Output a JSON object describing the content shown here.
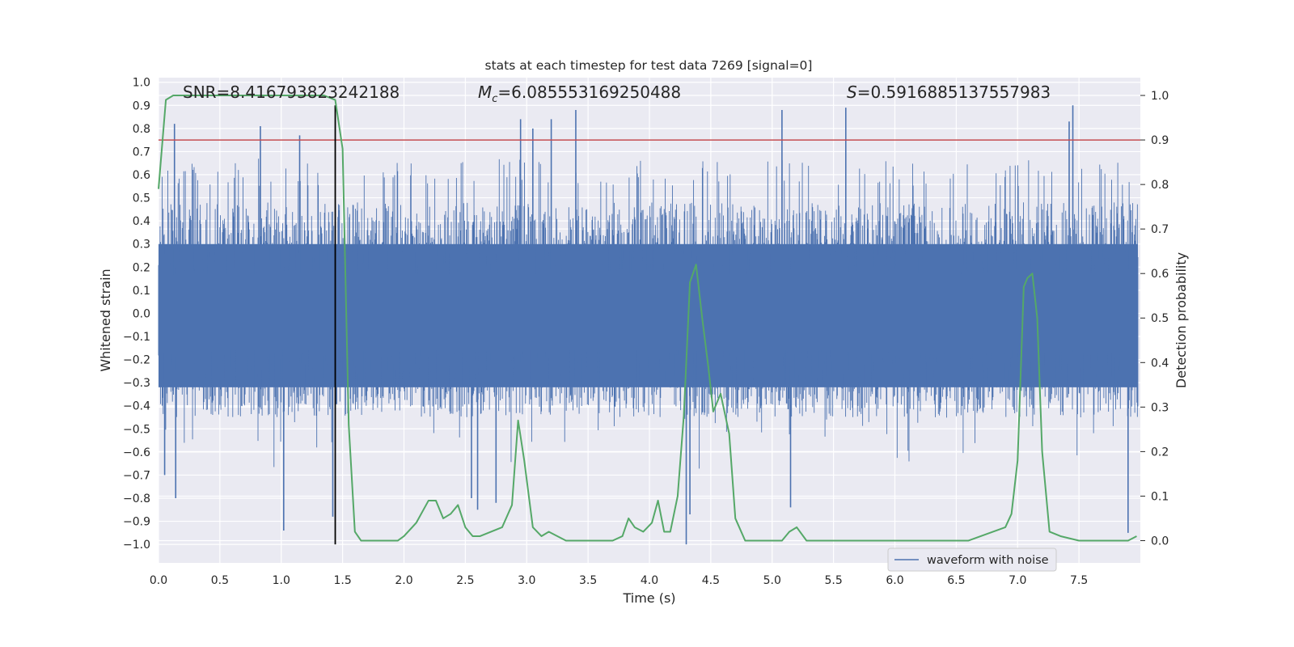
{
  "chart_data": {
    "type": "line",
    "title": "stats at each timestep for test data 7269 [signal=0]",
    "xlabel": "Time (s)",
    "ylabel": "Whitened strain",
    "y2label": "Detection probability",
    "xlim": [
      0.0,
      8.0
    ],
    "ylim": [
      -1.08,
      1.02
    ],
    "y2lim": [
      -0.05,
      1.04
    ],
    "xticks": [
      "0.0",
      "0.5",
      "1.0",
      "1.5",
      "2.0",
      "2.5",
      "3.0",
      "3.5",
      "4.0",
      "4.5",
      "5.0",
      "5.5",
      "6.0",
      "6.5",
      "7.0",
      "7.5"
    ],
    "yticks": [
      "1.0",
      "0.9",
      "0.8",
      "0.7",
      "0.6",
      "0.5",
      "0.4",
      "0.3",
      "0.2",
      "0.1",
      "0.0",
      "−0.1",
      "−0.2",
      "−0.3",
      "−0.4",
      "−0.5",
      "−0.6",
      "−0.7",
      "−0.8",
      "−0.9",
      "−1.0"
    ],
    "y2ticks": [
      "1.0",
      "0.9",
      "0.8",
      "0.7",
      "0.6",
      "0.5",
      "0.4",
      "0.3",
      "0.2",
      "0.1",
      "0.0"
    ],
    "grid": true,
    "legend_position": "bottom-right",
    "annotations": {
      "snr": "SNR=8.416793823242188",
      "mc_symbol": "M",
      "mc_sub": "c",
      "mc_value": "=6.085553169250488",
      "s_symbol": "S",
      "s_value": "=0.5916885137557983"
    },
    "series": [
      {
        "name": "waveform with noise",
        "axis": "left",
        "color": "#4c72b0",
        "kind": "noisy-waveform",
        "envelope_typical": [
          -0.45,
          0.48
        ],
        "spikes": [
          {
            "x": 0.13,
            "y": 0.82
          },
          {
            "x": 0.83,
            "y": 0.81
          },
          {
            "x": 1.15,
            "y": 0.77
          },
          {
            "x": 2.95,
            "y": 0.84
          },
          {
            "x": 3.2,
            "y": 0.84
          },
          {
            "x": 3.4,
            "y": 0.88
          },
          {
            "x": 5.08,
            "y": 0.88
          },
          {
            "x": 5.6,
            "y": 0.89
          },
          {
            "x": 7.45,
            "y": 0.9
          },
          {
            "x": 7.42,
            "y": 0.83
          },
          {
            "x": 3.05,
            "y": 0.8
          },
          {
            "x": 0.05,
            "y": -0.7
          },
          {
            "x": 0.14,
            "y": -0.8
          },
          {
            "x": 1.02,
            "y": -0.94
          },
          {
            "x": 1.42,
            "y": -0.88
          },
          {
            "x": 2.55,
            "y": -0.8
          },
          {
            "x": 2.6,
            "y": -0.85
          },
          {
            "x": 2.75,
            "y": -0.82
          },
          {
            "x": 4.3,
            "y": -1.0
          },
          {
            "x": 4.33,
            "y": -0.87
          },
          {
            "x": 5.15,
            "y": -0.84
          },
          {
            "x": 7.9,
            "y": -0.95
          }
        ]
      },
      {
        "name": "",
        "axis": "right",
        "color": "#55a868",
        "x": [
          0.0,
          0.06,
          0.12,
          0.3,
          0.6,
          0.9,
          1.2,
          1.35,
          1.44,
          1.5,
          1.55,
          1.6,
          1.65,
          1.7,
          1.75,
          1.85,
          1.95,
          2.0,
          2.1,
          2.2,
          2.26,
          2.32,
          2.38,
          2.44,
          2.5,
          2.56,
          2.62,
          2.8,
          2.88,
          2.93,
          2.98,
          3.05,
          3.12,
          3.18,
          3.25,
          3.32,
          3.4,
          3.5,
          3.6,
          3.7,
          3.78,
          3.83,
          3.88,
          3.95,
          4.02,
          4.07,
          4.12,
          4.17,
          4.23,
          4.28,
          4.33,
          4.38,
          4.43,
          4.48,
          4.52,
          4.58,
          4.65,
          4.7,
          4.78,
          4.85,
          4.92,
          5.0,
          5.08,
          5.14,
          5.2,
          5.28,
          5.35,
          5.5,
          5.7,
          6.0,
          6.4,
          6.6,
          6.7,
          6.8,
          6.9,
          6.95,
          7.0,
          7.05,
          7.08,
          7.12,
          7.16,
          7.2,
          7.26,
          7.35,
          7.5,
          7.6,
          7.7,
          7.8,
          7.9,
          7.97
        ],
        "y": [
          0.79,
          0.99,
          1.0,
          1.0,
          1.0,
          1.0,
          1.0,
          1.0,
          0.99,
          0.88,
          0.26,
          0.02,
          0.0,
          0.0,
          0.0,
          0.0,
          0.0,
          0.01,
          0.04,
          0.09,
          0.09,
          0.05,
          0.06,
          0.08,
          0.03,
          0.01,
          0.01,
          0.03,
          0.08,
          0.27,
          0.18,
          0.03,
          0.01,
          0.02,
          0.01,
          0.0,
          0.0,
          0.0,
          0.0,
          0.0,
          0.01,
          0.05,
          0.03,
          0.02,
          0.04,
          0.09,
          0.02,
          0.02,
          0.1,
          0.28,
          0.58,
          0.62,
          0.5,
          0.39,
          0.29,
          0.33,
          0.24,
          0.05,
          0.0,
          0.0,
          0.0,
          0.0,
          0.0,
          0.02,
          0.03,
          0.0,
          0.0,
          0.0,
          0.0,
          0.0,
          0.0,
          0.0,
          0.01,
          0.02,
          0.03,
          0.06,
          0.18,
          0.57,
          0.59,
          0.6,
          0.5,
          0.2,
          0.02,
          0.01,
          0.0,
          0.0,
          0.0,
          0.0,
          0.0,
          0.01
        ]
      },
      {
        "name": "",
        "axis": "right",
        "kind": "hline",
        "color": "#c44e52",
        "y": 0.9
      },
      {
        "name": "",
        "axis": "left",
        "kind": "vline",
        "color": "#000000",
        "x": 1.44,
        "y_from": -1.0,
        "y_to": 0.9
      }
    ]
  }
}
